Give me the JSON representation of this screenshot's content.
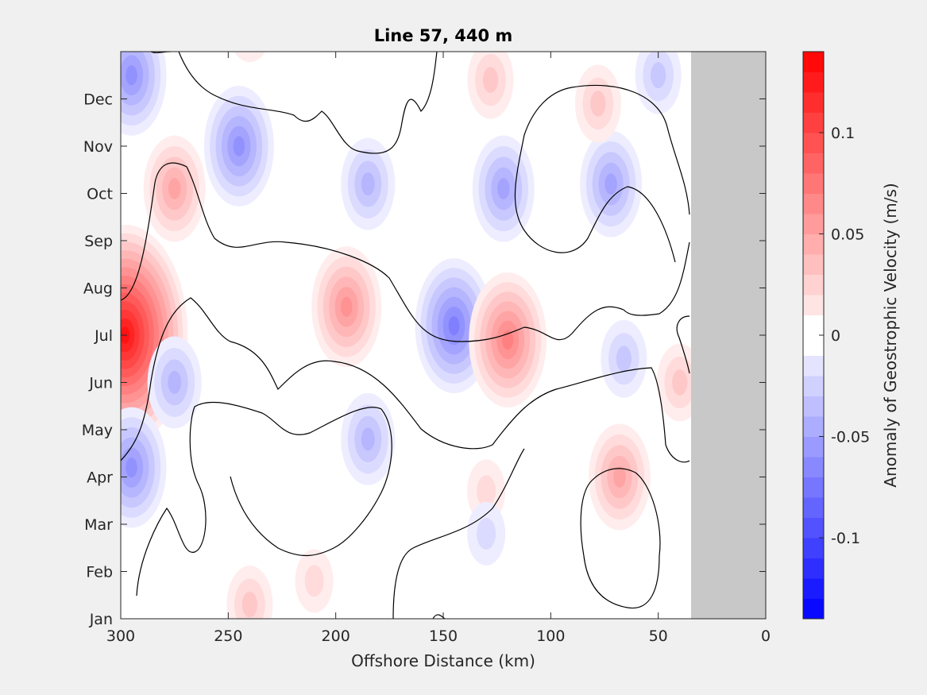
{
  "chart_data": {
    "type": "heatmap",
    "title": "Line 57, 440 m",
    "xlabel": "Offshore Distance (km)",
    "ylabel": "",
    "xlim": [
      300,
      0
    ],
    "x_direction": "reversed",
    "x_ticks": [
      300,
      250,
      200,
      150,
      100,
      50,
      0
    ],
    "y_tick_labels": [
      "Jan",
      "Feb",
      "Mar",
      "Apr",
      "May",
      "Jun",
      "Jul",
      "Aug",
      "Sep",
      "Oct",
      "Nov",
      "Dec"
    ],
    "no_data_region_km": [
      0,
      35
    ],
    "no_data_color": "#c8c8c8",
    "zero_contour_color": "#000000",
    "colorbar": {
      "label": "Anomaly of Geostrophic Velocity (m/s)",
      "range": [
        -0.14,
        0.14
      ],
      "step": 0.01,
      "ticks": [
        0.1,
        0.05,
        0,
        -0.05,
        -0.1
      ],
      "tick_labels": [
        "0.1",
        "0.05",
        "0",
        "-0.05",
        "-0.1"
      ],
      "low_color": "#0000ff",
      "high_color": "#ff0000"
    },
    "anomaly_features": [
      {
        "km": 298,
        "month": 6.0,
        "value": 0.13
      },
      {
        "km": 275,
        "month": 9.1,
        "value": 0.05
      },
      {
        "km": 245,
        "month": 10.0,
        "value": -0.06
      },
      {
        "km": 295,
        "month": 11.5,
        "value": -0.06
      },
      {
        "km": 195,
        "month": 6.6,
        "value": 0.06
      },
      {
        "km": 145,
        "month": 6.2,
        "value": -0.07
      },
      {
        "km": 120,
        "month": 5.9,
        "value": 0.07
      },
      {
        "km": 185,
        "month": 3.8,
        "value": -0.04
      },
      {
        "km": 295,
        "month": 3.2,
        "value": -0.06
      },
      {
        "km": 68,
        "month": 3.0,
        "value": 0.05
      },
      {
        "km": 72,
        "month": 9.2,
        "value": -0.05
      },
      {
        "km": 122,
        "month": 9.1,
        "value": -0.05
      },
      {
        "km": 185,
        "month": 9.2,
        "value": -0.04
      },
      {
        "km": 78,
        "month": 10.9,
        "value": 0.03
      },
      {
        "km": 128,
        "month": 11.4,
        "value": 0.03
      },
      {
        "km": 240,
        "month": 12.6,
        "value": 0.03
      },
      {
        "km": 275,
        "month": 5.0,
        "value": -0.04
      },
      {
        "km": 66,
        "month": 5.5,
        "value": -0.03
      },
      {
        "km": 40,
        "month": 5.0,
        "value": 0.03
      },
      {
        "km": 240,
        "month": 0.3,
        "value": 0.03
      },
      {
        "km": 130,
        "month": 2.7,
        "value": 0.02
      },
      {
        "km": 130,
        "month": 1.8,
        "value": -0.02
      },
      {
        "km": 210,
        "month": 0.8,
        "value": 0.02
      },
      {
        "km": 50,
        "month": 11.5,
        "value": -0.03
      }
    ]
  }
}
